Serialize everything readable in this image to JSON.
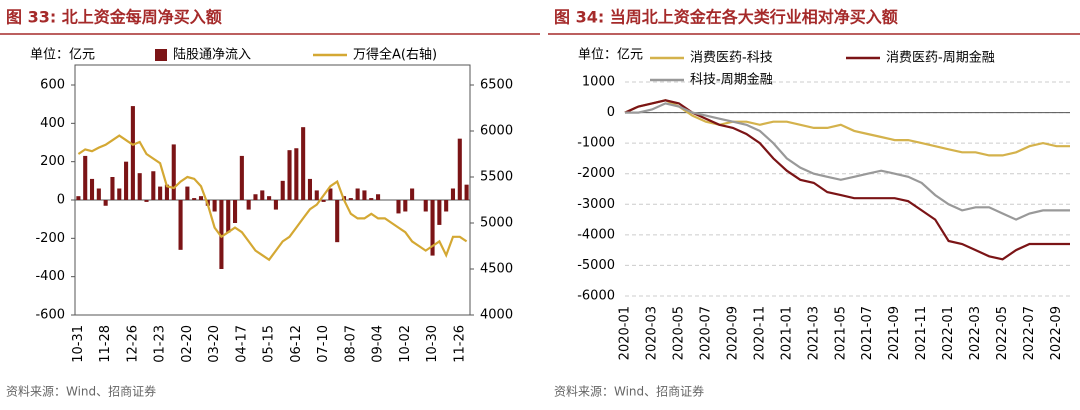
{
  "chart_data": [
    {
      "type": "bar",
      "title": "图 33:  北上资金每周净买入额",
      "unit": "单位：亿元",
      "note": "资料来源：Wind、招商证券",
      "categories": [
        "10-31",
        null,
        null,
        null,
        "11-28",
        null,
        null,
        null,
        "12-26",
        null,
        null,
        null,
        "01-23",
        null,
        null,
        null,
        "02-20",
        null,
        null,
        null,
        "03-20",
        null,
        null,
        null,
        "04-17",
        null,
        null,
        null,
        "05-15",
        null,
        null,
        null,
        "06-12",
        null,
        null,
        null,
        "07-10",
        null,
        null,
        null,
        "08-07",
        null,
        null,
        null,
        "09-04",
        null,
        null,
        null,
        "10-02",
        null,
        null,
        null,
        "10-30",
        null,
        null,
        null,
        "11-26",
        null
      ],
      "series": [
        {
          "name": "陆股通净流入",
          "type": "bar",
          "color": "#7b1416",
          "values": [
            20,
            230,
            110,
            60,
            -30,
            120,
            60,
            200,
            490,
            140,
            -10,
            150,
            70,
            80,
            290,
            -260,
            70,
            10,
            20,
            -30,
            -60,
            -360,
            -170,
            -120,
            230,
            -50,
            30,
            50,
            20,
            -50,
            100,
            260,
            270,
            380,
            110,
            50,
            -10,
            60,
            -220,
            20,
            10,
            60,
            50,
            10,
            30,
            0,
            0,
            -70,
            -60,
            60,
            0,
            -60,
            -290,
            -130,
            -60,
            60,
            320,
            80
          ]
        },
        {
          "name": "万得全A(右轴)",
          "type": "line",
          "axis": "y2",
          "color": "#d4a833",
          "values": [
            5750,
            5800,
            5780,
            5820,
            5850,
            5900,
            5950,
            5900,
            5850,
            5880,
            5750,
            5700,
            5650,
            5400,
            5380,
            5450,
            5500,
            5480,
            5400,
            5200,
            4950,
            4850,
            4900,
            4950,
            4900,
            4800,
            4700,
            4650,
            4600,
            4700,
            4800,
            4850,
            4950,
            5050,
            5150,
            5200,
            5300,
            5400,
            5450,
            5250,
            5100,
            5050,
            5050,
            5100,
            5050,
            5050,
            5000,
            4950,
            4900,
            4800,
            4750,
            4700,
            4750,
            4800,
            4650,
            4850,
            4850,
            4800
          ]
        }
      ],
      "ylim": [
        -600,
        600
      ],
      "yticks": [
        -600,
        -400,
        -200,
        0,
        200,
        400,
        600
      ],
      "y2lim": [
        4000,
        6500
      ],
      "y2ticks": [
        4000,
        4500,
        5000,
        5500,
        6000,
        6500
      ],
      "grid": false
    },
    {
      "type": "line",
      "title": "图 34:  当周北上资金在各大类行业相对净买入额",
      "unit": "单位：亿元",
      "note": "资料来源：Wind、招商证券",
      "categories": [
        "2020-01",
        null,
        "2020-03",
        null,
        "2020-05",
        null,
        "2020-07",
        null,
        "2020-09",
        null,
        "2020-11",
        null,
        "2021-01",
        null,
        "2021-03",
        null,
        "2021-05",
        null,
        "2021-07",
        null,
        "2021-09",
        null,
        "2021-11",
        null,
        "2022-01",
        null,
        "2022-03",
        null,
        "2022-05",
        null,
        "2022-07",
        null,
        "2022-09",
        null
      ],
      "series": [
        {
          "name": "消费医药-科技",
          "color": "#d4b24c",
          "values": [
            0,
            200,
            300,
            400,
            200,
            -100,
            -300,
            -400,
            -300,
            -300,
            -400,
            -300,
            -300,
            -400,
            -500,
            -500,
            -400,
            -600,
            -700,
            -800,
            -900,
            -900,
            -1000,
            -1100,
            -1200,
            -1300,
            -1300,
            -1400,
            -1400,
            -1300,
            -1100,
            -1000,
            -1100,
            -1100
          ]
        },
        {
          "name": "消费医药-周期金融",
          "color": "#7b1416",
          "values": [
            0,
            200,
            300,
            400,
            300,
            0,
            -200,
            -400,
            -500,
            -700,
            -1000,
            -1500,
            -1900,
            -2200,
            -2300,
            -2600,
            -2700,
            -2800,
            -2800,
            -2800,
            -2800,
            -2900,
            -3200,
            -3500,
            -4200,
            -4300,
            -4500,
            -4700,
            -4800,
            -4500,
            -4300,
            -4300,
            -4300,
            -4300
          ]
        },
        {
          "name": "科技-周期金融",
          "color": "#999999",
          "values": [
            0,
            0,
            100,
            300,
            200,
            0,
            -100,
            -200,
            -300,
            -400,
            -600,
            -1000,
            -1500,
            -1800,
            -2000,
            -2100,
            -2200,
            -2100,
            -2000,
            -1900,
            -2000,
            -2100,
            -2300,
            -2700,
            -3000,
            -3200,
            -3100,
            -3100,
            -3300,
            -3500,
            -3300,
            -3200,
            -3200,
            -3200
          ]
        }
      ],
      "ylim": [
        -6000,
        1000
      ],
      "yticks": [
        -6000,
        -5000,
        -4000,
        -3000,
        -2000,
        -1000,
        0,
        1000
      ],
      "grid": true
    }
  ]
}
